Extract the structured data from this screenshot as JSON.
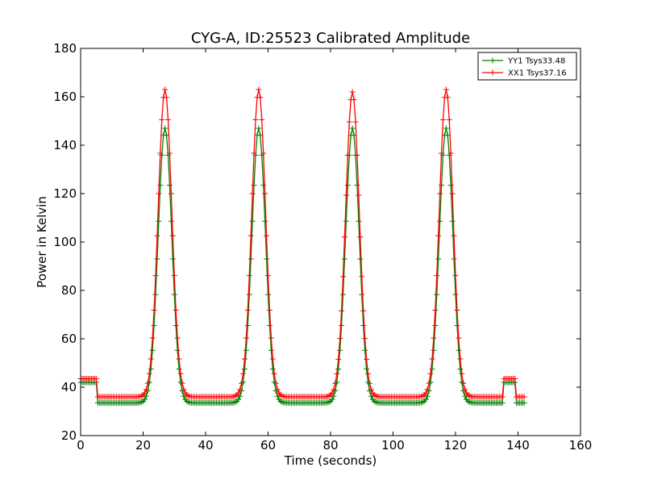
{
  "chart_data": {
    "type": "line",
    "title": "CYG-A, ID:25523 Calibrated Amplitude",
    "xlabel": "Time (seconds)",
    "ylabel": "Power in Kelvin",
    "xlim": [
      0,
      160
    ],
    "ylim": [
      20,
      180
    ],
    "xticks": [
      0,
      20,
      40,
      60,
      80,
      100,
      120,
      140,
      160
    ],
    "yticks": [
      20,
      40,
      60,
      80,
      100,
      120,
      140,
      160,
      180
    ],
    "grid": false,
    "legend_position": "top-right",
    "marker": "+",
    "sample_interval": 0.5,
    "peaks_x": [
      27,
      57,
      87,
      117
    ],
    "peak_width": 2.2,
    "segments": [
      [
        0,
        5
      ],
      [
        5.5,
        135
      ],
      [
        135.5,
        139
      ],
      [
        139.5,
        142
      ]
    ],
    "series": [
      {
        "name": "YY1 Tsys33.48",
        "color": "#008000",
        "segment_levels": [
          42,
          33.5,
          42,
          33.5
        ],
        "peak_values": [
          147,
          147,
          147,
          147
        ]
      },
      {
        "name": "XX1 Tsys37.16",
        "color": "#ff0000",
        "segment_levels": [
          43.5,
          36,
          43.5,
          36
        ],
        "peak_values": [
          163,
          163,
          162,
          163
        ]
      }
    ]
  }
}
